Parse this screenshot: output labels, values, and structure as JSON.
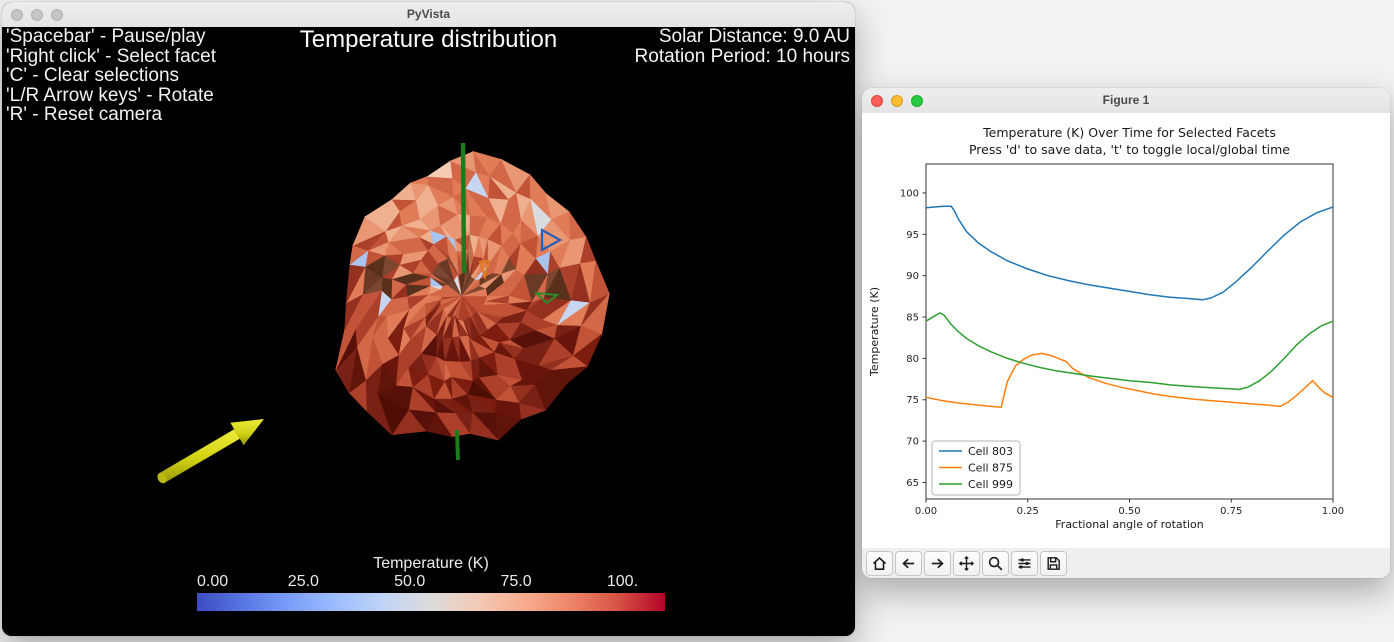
{
  "desktop": {
    "background": "#f2f2f3"
  },
  "pyvista_window": {
    "title": "PyVista",
    "shortcuts": [
      "'Spacebar' - Pause/play",
      "'Right click' - Select facet",
      "'C' - Clear selections",
      "'L/R Arrow keys' - Rotate",
      "'R' - Reset camera"
    ],
    "hud_title": "Temperature distribution",
    "info_lines": [
      "Solar Distance: 9.0 AU",
      "Rotation Period: 10 hours"
    ],
    "colorbar": {
      "title": "Temperature (K)",
      "colormap": "coolwarm",
      "range": [
        0,
        110
      ],
      "ticks": [
        {
          "label": "0.00",
          "value": 0
        },
        {
          "label": "25.0",
          "value": 25
        },
        {
          "label": "50.0",
          "value": 50
        },
        {
          "label": "75.0",
          "value": 75
        },
        {
          "label": "100.",
          "value": 100
        }
      ]
    },
    "scene": {
      "rotation_axis_color": "#1d7a1d",
      "sun_arrow_color": "#d8d818",
      "selected_facets": [
        {
          "name": "cell-803",
          "outline_color": "#2a5fb8"
        },
        {
          "name": "cell-875",
          "outline_color": "#e07b1a"
        },
        {
          "name": "cell-999",
          "outline_color": "#2e8b2e"
        }
      ]
    }
  },
  "figure_window": {
    "title": "Figure 1",
    "toolbar_buttons": [
      "home",
      "back",
      "forward",
      "pan",
      "zoom",
      "configure-subplots",
      "save"
    ],
    "chart_data": {
      "type": "line",
      "title": "Temperature (K) Over Time for Selected Facets",
      "subtitle": "Press 'd' to save data, 't' to toggle local/global time",
      "xlabel": "Fractional angle of rotation",
      "ylabel": "Temperature (K)",
      "xlim": [
        0,
        1
      ],
      "ylim": [
        63,
        103.5
      ],
      "xticks": [
        0,
        0.25,
        0.5,
        0.75,
        1.0
      ],
      "xtick_labels": [
        "0.00",
        "0.25",
        "0.50",
        "0.75",
        "1.00"
      ],
      "yticks": [
        65,
        70,
        75,
        80,
        85,
        90,
        95,
        100
      ],
      "grid": false,
      "legend_position": "lower left",
      "series": [
        {
          "name": "Cell 803",
          "color": "#1f77b4",
          "points": [
            [
              0,
              98.2
            ],
            [
              0.02,
              98.3
            ],
            [
              0.045,
              98.4
            ],
            [
              0.062,
              98.4
            ],
            [
              0.07,
              97.8
            ],
            [
              0.08,
              96.8
            ],
            [
              0.1,
              95.3
            ],
            [
              0.13,
              93.9
            ],
            [
              0.16,
              92.9
            ],
            [
              0.2,
              91.8
            ],
            [
              0.25,
              90.8
            ],
            [
              0.3,
              90.0
            ],
            [
              0.35,
              89.4
            ],
            [
              0.4,
              88.9
            ],
            [
              0.45,
              88.5
            ],
            [
              0.5,
              88.1
            ],
            [
              0.55,
              87.7
            ],
            [
              0.6,
              87.4
            ],
            [
              0.64,
              87.25
            ],
            [
              0.68,
              87.1
            ],
            [
              0.7,
              87.3
            ],
            [
              0.73,
              88.0
            ],
            [
              0.76,
              89.2
            ],
            [
              0.8,
              91.0
            ],
            [
              0.84,
              93.0
            ],
            [
              0.88,
              94.9
            ],
            [
              0.92,
              96.5
            ],
            [
              0.96,
              97.6
            ],
            [
              1,
              98.3
            ]
          ]
        },
        {
          "name": "Cell 875",
          "color": "#ff7f0e",
          "points": [
            [
              0,
              75.3
            ],
            [
              0.04,
              74.9
            ],
            [
              0.08,
              74.6
            ],
            [
              0.12,
              74.4
            ],
            [
              0.16,
              74.2
            ],
            [
              0.185,
              74.1
            ],
            [
              0.19,
              75.2
            ],
            [
              0.2,
              77.2
            ],
            [
              0.22,
              79.1
            ],
            [
              0.24,
              79.9
            ],
            [
              0.26,
              80.4
            ],
            [
              0.285,
              80.6
            ],
            [
              0.31,
              80.3
            ],
            [
              0.33,
              79.9
            ],
            [
              0.345,
              79.6
            ],
            [
              0.36,
              78.8
            ],
            [
              0.38,
              78.2
            ],
            [
              0.4,
              77.7
            ],
            [
              0.44,
              77.0
            ],
            [
              0.48,
              76.5
            ],
            [
              0.52,
              76.1
            ],
            [
              0.56,
              75.7
            ],
            [
              0.6,
              75.4
            ],
            [
              0.65,
              75.1
            ],
            [
              0.7,
              74.9
            ],
            [
              0.75,
              74.7
            ],
            [
              0.8,
              74.5
            ],
            [
              0.84,
              74.35
            ],
            [
              0.87,
              74.2
            ],
            [
              0.89,
              74.7
            ],
            [
              0.91,
              75.5
            ],
            [
              0.93,
              76.4
            ],
            [
              0.95,
              77.3
            ],
            [
              0.965,
              76.5
            ],
            [
              0.98,
              75.8
            ],
            [
              1,
              75.3
            ]
          ]
        },
        {
          "name": "Cell 999",
          "color": "#2ca02c",
          "points": [
            [
              0,
              84.5
            ],
            [
              0.02,
              85.1
            ],
            [
              0.035,
              85.5
            ],
            [
              0.045,
              85.2
            ],
            [
              0.06,
              84.2
            ],
            [
              0.08,
              83.2
            ],
            [
              0.1,
              82.4
            ],
            [
              0.13,
              81.5
            ],
            [
              0.16,
              80.8
            ],
            [
              0.2,
              80.0
            ],
            [
              0.24,
              79.4
            ],
            [
              0.28,
              78.9
            ],
            [
              0.32,
              78.5
            ],
            [
              0.36,
              78.2
            ],
            [
              0.4,
              77.9
            ],
            [
              0.45,
              77.6
            ],
            [
              0.5,
              77.3
            ],
            [
              0.55,
              77.1
            ],
            [
              0.6,
              76.8
            ],
            [
              0.65,
              76.6
            ],
            [
              0.7,
              76.45
            ],
            [
              0.74,
              76.35
            ],
            [
              0.77,
              76.25
            ],
            [
              0.79,
              76.5
            ],
            [
              0.82,
              77.3
            ],
            [
              0.85,
              78.5
            ],
            [
              0.88,
              80.0
            ],
            [
              0.91,
              81.6
            ],
            [
              0.94,
              82.9
            ],
            [
              0.97,
              83.9
            ],
            [
              1,
              84.5
            ]
          ]
        }
      ]
    }
  }
}
